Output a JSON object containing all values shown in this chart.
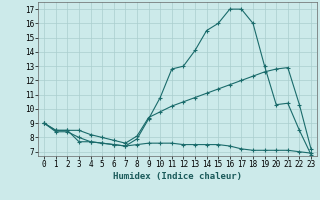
{
  "title": "",
  "xlabel": "Humidex (Indice chaleur)",
  "ylabel": "",
  "background_color": "#cceaea",
  "grid_color": "#aacece",
  "line_color": "#1a6b6b",
  "xlim": [
    -0.5,
    23.5
  ],
  "ylim": [
    6.7,
    17.5
  ],
  "xticks": [
    0,
    1,
    2,
    3,
    4,
    5,
    6,
    7,
    8,
    9,
    10,
    11,
    12,
    13,
    14,
    15,
    16,
    17,
    18,
    19,
    20,
    21,
    22,
    23
  ],
  "yticks": [
    7,
    8,
    9,
    10,
    11,
    12,
    13,
    14,
    15,
    16,
    17
  ],
  "line1_x": [
    0,
    1,
    2,
    3,
    4,
    5,
    6,
    7,
    8,
    9,
    10,
    11,
    12,
    13,
    14,
    15,
    16,
    17,
    18,
    19,
    20,
    21,
    22,
    23
  ],
  "line1_y": [
    9.0,
    8.5,
    8.5,
    7.7,
    7.7,
    7.6,
    7.5,
    7.4,
    7.9,
    9.3,
    10.8,
    12.8,
    13.0,
    14.1,
    15.5,
    16.0,
    17.0,
    17.0,
    16.0,
    13.0,
    10.3,
    10.4,
    8.5,
    6.8
  ],
  "line2_x": [
    0,
    1,
    2,
    3,
    4,
    5,
    6,
    7,
    8,
    9,
    10,
    11,
    12,
    13,
    14,
    15,
    16,
    17,
    18,
    19,
    20,
    21,
    22,
    23
  ],
  "line2_y": [
    9.0,
    8.5,
    8.5,
    8.5,
    8.2,
    8.0,
    7.8,
    7.6,
    8.1,
    9.4,
    9.8,
    10.2,
    10.5,
    10.8,
    11.1,
    11.4,
    11.7,
    12.0,
    12.3,
    12.6,
    12.8,
    12.9,
    10.3,
    7.2
  ],
  "line3_x": [
    0,
    1,
    2,
    3,
    4,
    5,
    6,
    7,
    8,
    9,
    10,
    11,
    12,
    13,
    14,
    15,
    16,
    17,
    18,
    19,
    20,
    21,
    22,
    23
  ],
  "line3_y": [
    9.0,
    8.4,
    8.4,
    8.0,
    7.7,
    7.6,
    7.5,
    7.4,
    7.5,
    7.6,
    7.6,
    7.6,
    7.5,
    7.5,
    7.5,
    7.5,
    7.4,
    7.2,
    7.1,
    7.1,
    7.1,
    7.1,
    7.0,
    6.9
  ],
  "xlabel_fontsize": 6.5,
  "tick_fontsize": 5.5
}
